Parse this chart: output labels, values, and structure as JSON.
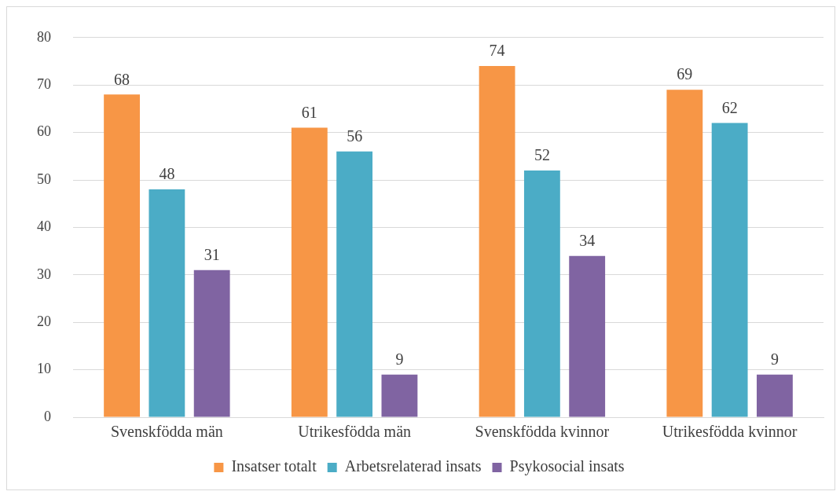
{
  "chart_data": {
    "type": "bar",
    "categories": [
      "Svenskfödda män",
      "Utrikesfödda män",
      "Svenskfödda kvinnor",
      "Utrikesfödda kvinnor"
    ],
    "series": [
      {
        "name": "Insatser totalt",
        "color": "#f79646",
        "values": [
          68,
          61,
          74,
          69
        ]
      },
      {
        "name": "Arbetsrelaterad insats",
        "color": "#4bacc6",
        "values": [
          48,
          56,
          52,
          62
        ]
      },
      {
        "name": "Psykosocial insats",
        "color": "#8064a2",
        "values": [
          31,
          9,
          34,
          9
        ]
      }
    ],
    "ylim": [
      0,
      80
    ],
    "yticks": [
      0,
      10,
      20,
      30,
      40,
      50,
      60,
      70,
      80
    ],
    "grid": "y",
    "legend": "bottom",
    "data_labels": true
  }
}
